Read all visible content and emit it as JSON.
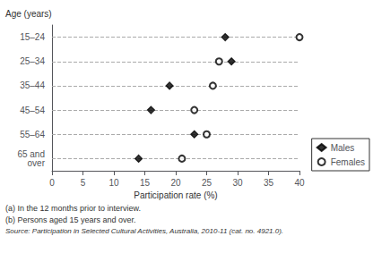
{
  "chart_data": {
    "type": "scatter",
    "orientation": "horizontal",
    "categories": [
      "15–24",
      "25–34",
      "35–44",
      "45–54",
      "55–64",
      "65 and\nover"
    ],
    "series": [
      {
        "name": "Males",
        "color": "#000000",
        "marker": "diamond",
        "values": [
          28,
          29,
          19,
          16,
          23,
          14
        ]
      },
      {
        "name": "Females",
        "color": "#000000",
        "marker": "circle-open",
        "values": [
          40,
          27,
          26,
          23,
          25,
          21
        ]
      }
    ],
    "xlabel": "Participation rate (%)",
    "ylabel": "Age (years)",
    "xlim": [
      0,
      40
    ],
    "xticks": [
      0,
      5,
      10,
      15,
      20,
      25,
      30,
      35,
      40
    ],
    "grid": true,
    "legend": "lower right",
    "annotations": [
      "(a) In the 12 months prior to interview.",
      "(b) Persons aged 15 years and over.",
      "Source: Participation in Selected Cultural Activities, Australia, 2010-11 (cat. no. 4921.0)."
    ]
  }
}
